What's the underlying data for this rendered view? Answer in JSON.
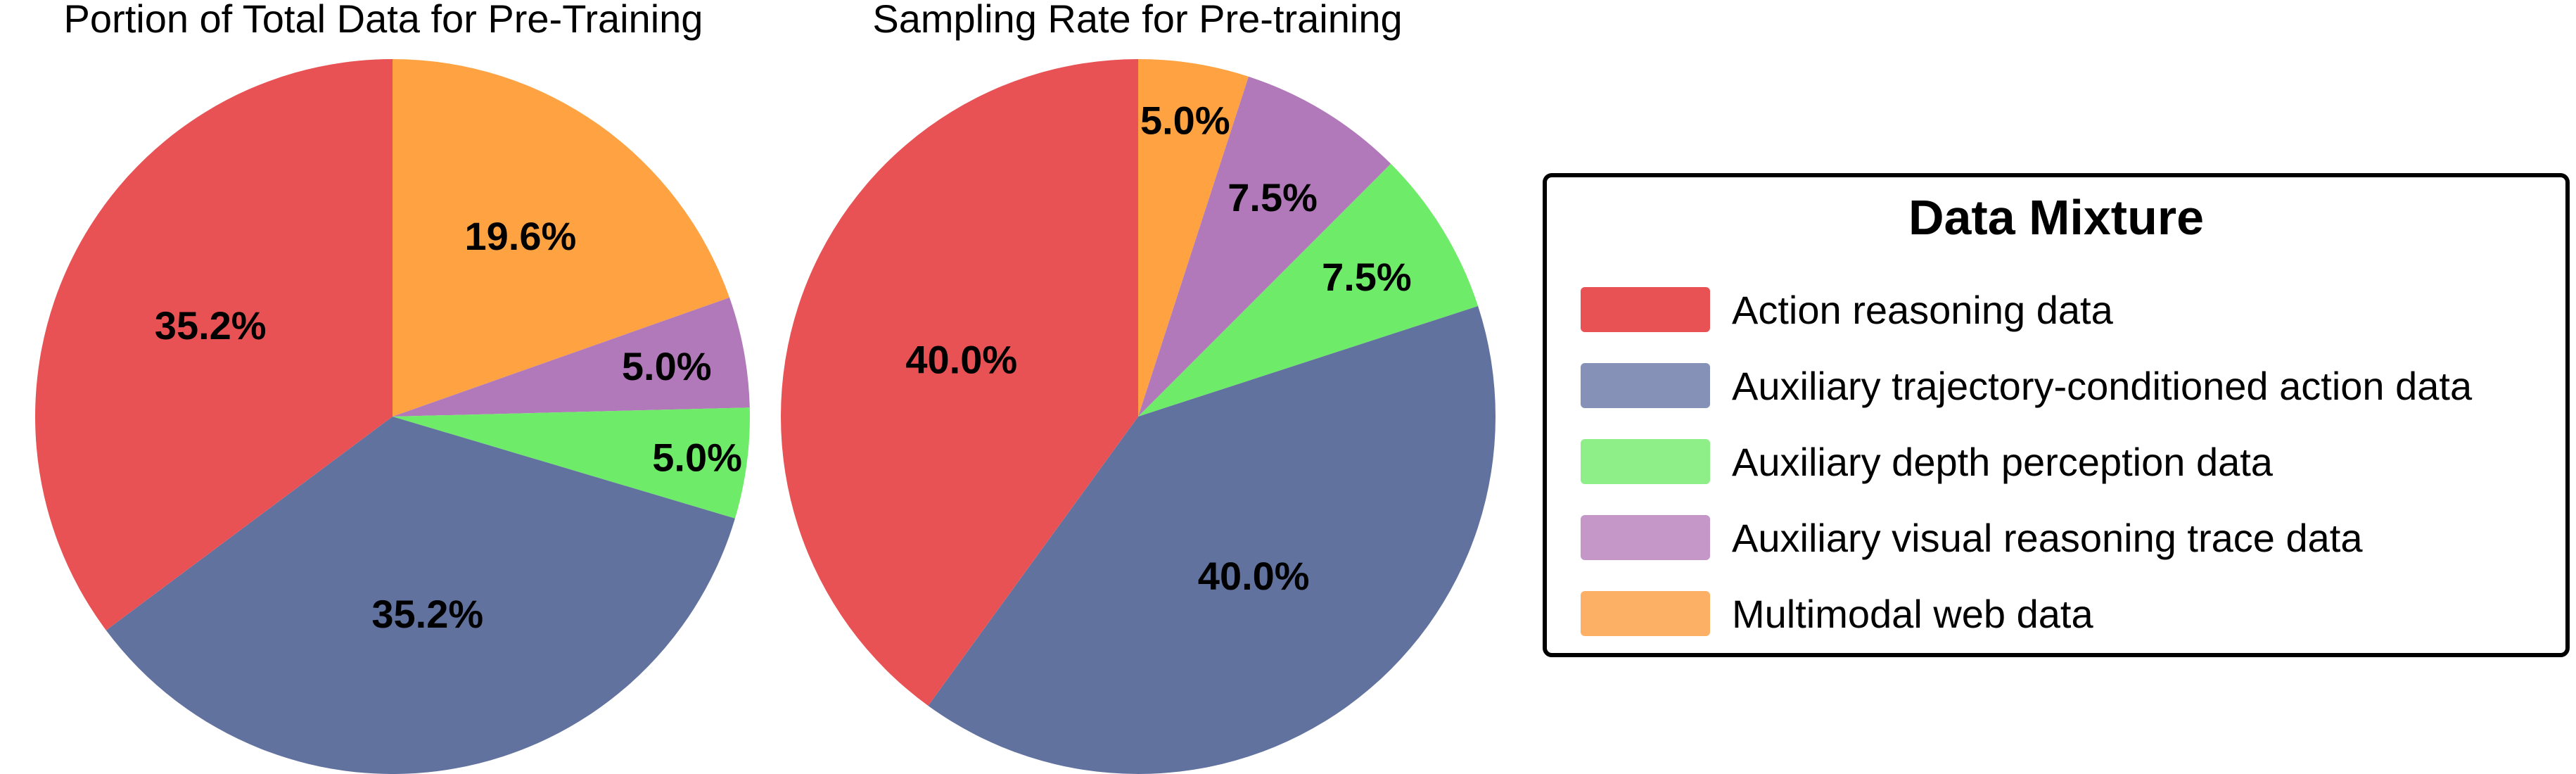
{
  "chart_data": [
    {
      "type": "pie",
      "title": "Portion of Total Data for Pre-Training",
      "start_angle_deg": 90,
      "direction": "clockwise",
      "categories": [
        "Multimodal web data",
        "Auxiliary visual reasoning trace data",
        "Auxiliary depth perception data",
        "Auxiliary trajectory-conditioned action data",
        "Action reasoning data"
      ],
      "values": [
        19.6,
        5.0,
        5.0,
        35.2,
        35.2
      ],
      "labels": [
        "19.6%",
        "5.0%",
        "5.0%",
        "35.2%",
        "35.2%"
      ]
    },
    {
      "type": "pie",
      "title": "Sampling Rate for Pre-training",
      "start_angle_deg": 90,
      "direction": "clockwise",
      "categories": [
        "Multimodal web data",
        "Auxiliary visual reasoning trace data",
        "Auxiliary depth perception data",
        "Auxiliary trajectory-conditioned action data",
        "Action reasoning data"
      ],
      "values": [
        5.0,
        7.5,
        7.5,
        40.0,
        40.0
      ],
      "labels": [
        "5.0%",
        "7.5%",
        "7.5%",
        "40.0%",
        "40.0%"
      ]
    }
  ],
  "legend": {
    "title": "Data Mixture",
    "placement": "right",
    "items": [
      {
        "label": "Action reasoning data",
        "color": "#E85254"
      },
      {
        "label": "Auxiliary trajectory-conditioned action data",
        "color": "#8591B6"
      },
      {
        "label": "Auxiliary depth perception data",
        "color": "#8EEF88"
      },
      {
        "label": "Auxiliary visual reasoning trace data",
        "color": "#C596C8"
      },
      {
        "label": "Multimodal web data",
        "color": "#FCB066"
      }
    ]
  },
  "slice_colors": {
    "Action reasoning data": "#E85254",
    "Auxiliary trajectory-conditioned action data": "#62729F",
    "Auxiliary depth perception data": "#6EEB68",
    "Auxiliary visual reasoning trace data": "#B179BA",
    "Multimodal web data": "#FEA242"
  }
}
